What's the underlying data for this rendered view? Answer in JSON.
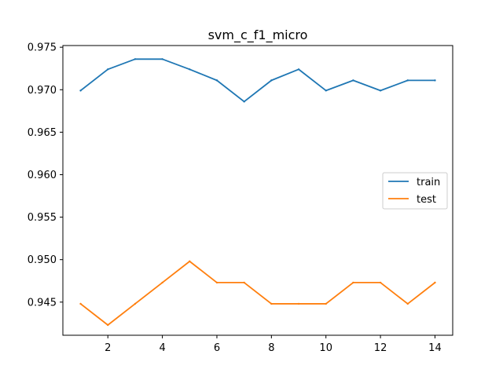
{
  "chart_data": {
    "type": "line",
    "title": "svm_c_f1_micro",
    "xlabel": "",
    "ylabel": "",
    "x": [
      1,
      2,
      3,
      4,
      5,
      6,
      7,
      8,
      9,
      10,
      11,
      12,
      13,
      14
    ],
    "xlim": [
      0.35,
      14.65
    ],
    "ylim": [
      0.9411,
      0.9752
    ],
    "xticks": [
      2,
      4,
      6,
      8,
      10,
      12,
      14
    ],
    "xtick_labels": [
      "2",
      "4",
      "6",
      "8",
      "10",
      "12",
      "14"
    ],
    "yticks": [
      0.945,
      0.95,
      0.955,
      0.96,
      0.965,
      0.97,
      0.975
    ],
    "ytick_labels": [
      "0.945",
      "0.950",
      "0.955",
      "0.960",
      "0.965",
      "0.970",
      "0.975"
    ],
    "grid": false,
    "legend": "center-right",
    "series": [
      {
        "name": "train",
        "color": "#1f77b4",
        "values": [
          0.9699,
          0.9724,
          0.9736,
          0.9736,
          0.9724,
          0.9711,
          0.9686,
          0.9711,
          0.9724,
          0.9699,
          0.9711,
          0.9699,
          0.9711,
          0.9711
        ]
      },
      {
        "name": "test",
        "color": "#ff7f0e",
        "values": [
          0.9448,
          0.9423,
          0.9448,
          0.9473,
          0.9498,
          0.9473,
          0.9473,
          0.9448,
          0.9448,
          0.9448,
          0.9473,
          0.9473,
          0.9448,
          0.9473
        ]
      }
    ]
  }
}
